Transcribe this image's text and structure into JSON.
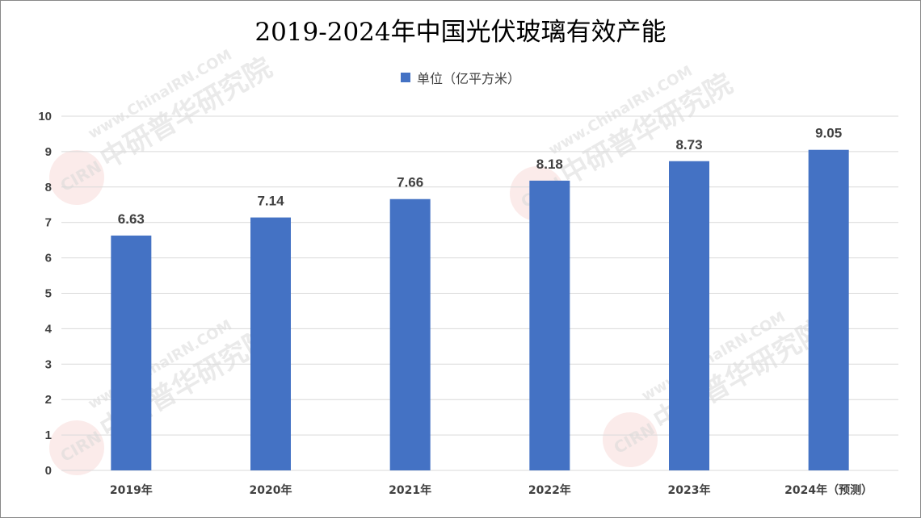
{
  "chart_data": {
    "type": "bar",
    "title": "2019-2024年中国光伏玻璃有效产能",
    "categories": [
      "2019年",
      "2020年",
      "2021年",
      "2022年",
      "2023年",
      "2024年（预测）"
    ],
    "series": [
      {
        "name": "单位（亿平方米）",
        "values": [
          6.63,
          7.14,
          7.66,
          8.18,
          8.73,
          9.05
        ],
        "color": "#4472c4"
      }
    ],
    "ylim": [
      0,
      10
    ],
    "yticks": [
      0,
      1,
      2,
      3,
      4,
      5,
      6,
      7,
      8,
      9,
      10
    ],
    "ytick_labels": [
      "0",
      "1",
      "2",
      "3",
      "4",
      "5",
      "6",
      "7",
      "8",
      "9",
      "10"
    ],
    "data_labels": [
      "6.63",
      "7.14",
      "7.66",
      "8.18",
      "8.73",
      "9.05"
    ],
    "grid": true,
    "legend_position": "top-center",
    "xlabel": "",
    "ylabel": ""
  },
  "watermark": {
    "logo_text": "CIRN",
    "company": "中研普华研究院",
    "url": "www.ChinaIRN.COM"
  },
  "colors": {
    "bar": "#4472c4",
    "grid": "#d9d9d9",
    "text": "#404040"
  }
}
